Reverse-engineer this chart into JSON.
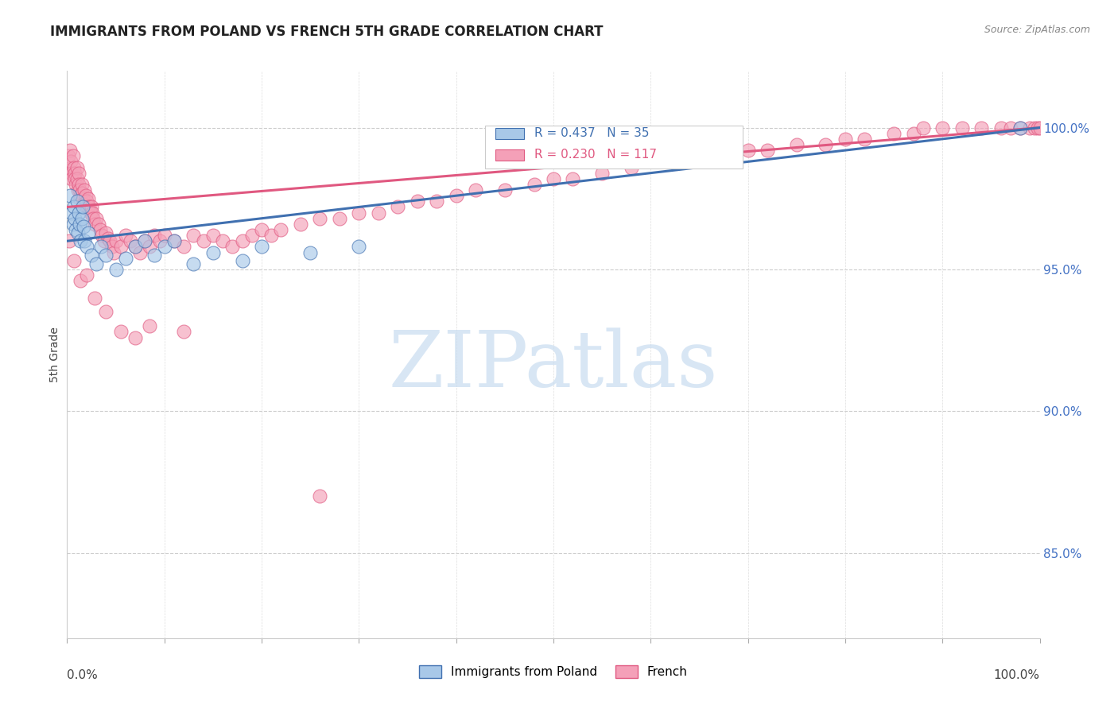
{
  "title": "IMMIGRANTS FROM POLAND VS FRENCH 5TH GRADE CORRELATION CHART",
  "source": "Source: ZipAtlas.com",
  "ylabel": "5th Grade",
  "legend_label1": "Immigrants from Poland",
  "legend_label2": "French",
  "r1": 0.437,
  "n1": 35,
  "r2": 0.23,
  "n2": 117,
  "color_blue": "#a8c8e8",
  "color_pink": "#f4a0b8",
  "color_blue_line": "#4070b0",
  "color_pink_line": "#e05880",
  "color_blue_text": "#4070b0",
  "color_pink_text": "#e05880",
  "ytick_labels": [
    "85.0%",
    "90.0%",
    "95.0%",
    "100.0%"
  ],
  "ytick_values": [
    0.85,
    0.9,
    0.95,
    1.0
  ],
  "xtick_values": [
    0.0,
    0.1,
    0.2,
    0.3,
    0.4,
    0.5,
    0.6,
    0.7,
    0.8,
    0.9,
    1.0
  ],
  "xlim": [
    0.0,
    1.0
  ],
  "ylim": [
    0.82,
    1.02
  ],
  "blue_x": [
    0.003,
    0.005,
    0.006,
    0.007,
    0.008,
    0.009,
    0.01,
    0.011,
    0.012,
    0.013,
    0.014,
    0.015,
    0.016,
    0.017,
    0.018,
    0.02,
    0.022,
    0.025,
    0.03,
    0.035,
    0.04,
    0.05,
    0.06,
    0.07,
    0.08,
    0.09,
    0.1,
    0.11,
    0.13,
    0.15,
    0.18,
    0.2,
    0.25,
    0.3,
    0.98
  ],
  "blue_y": [
    0.976,
    0.97,
    0.966,
    0.972,
    0.968,
    0.964,
    0.974,
    0.963,
    0.97,
    0.966,
    0.96,
    0.968,
    0.972,
    0.965,
    0.96,
    0.958,
    0.963,
    0.955,
    0.952,
    0.958,
    0.955,
    0.95,
    0.954,
    0.958,
    0.96,
    0.955,
    0.958,
    0.96,
    0.952,
    0.956,
    0.953,
    0.958,
    0.956,
    0.958,
    1.0
  ],
  "pink_x": [
    0.001,
    0.002,
    0.003,
    0.004,
    0.005,
    0.005,
    0.006,
    0.007,
    0.008,
    0.008,
    0.009,
    0.01,
    0.01,
    0.011,
    0.012,
    0.012,
    0.013,
    0.013,
    0.014,
    0.015,
    0.015,
    0.016,
    0.017,
    0.018,
    0.019,
    0.02,
    0.021,
    0.022,
    0.023,
    0.024,
    0.025,
    0.026,
    0.027,
    0.028,
    0.03,
    0.032,
    0.034,
    0.036,
    0.038,
    0.04,
    0.042,
    0.044,
    0.046,
    0.048,
    0.05,
    0.055,
    0.06,
    0.065,
    0.07,
    0.075,
    0.08,
    0.085,
    0.09,
    0.095,
    0.1,
    0.11,
    0.12,
    0.13,
    0.14,
    0.15,
    0.16,
    0.17,
    0.18,
    0.19,
    0.2,
    0.21,
    0.22,
    0.24,
    0.26,
    0.28,
    0.3,
    0.32,
    0.34,
    0.36,
    0.38,
    0.4,
    0.42,
    0.45,
    0.48,
    0.5,
    0.52,
    0.55,
    0.58,
    0.6,
    0.62,
    0.65,
    0.68,
    0.7,
    0.72,
    0.75,
    0.78,
    0.8,
    0.82,
    0.85,
    0.87,
    0.88,
    0.9,
    0.92,
    0.94,
    0.96,
    0.97,
    0.98,
    0.99,
    0.995,
    0.998,
    1.0,
    0.002,
    0.007,
    0.014,
    0.02,
    0.028,
    0.04,
    0.055,
    0.07,
    0.085,
    0.12,
    0.26
  ],
  "pink_y": [
    0.99,
    0.985,
    0.992,
    0.988,
    0.984,
    0.982,
    0.99,
    0.986,
    0.984,
    0.982,
    0.98,
    0.986,
    0.982,
    0.978,
    0.984,
    0.98,
    0.978,
    0.975,
    0.976,
    0.98,
    0.977,
    0.975,
    0.973,
    0.978,
    0.976,
    0.974,
    0.972,
    0.975,
    0.972,
    0.97,
    0.972,
    0.97,
    0.968,
    0.966,
    0.968,
    0.966,
    0.964,
    0.962,
    0.96,
    0.963,
    0.961,
    0.96,
    0.958,
    0.956,
    0.96,
    0.958,
    0.962,
    0.96,
    0.958,
    0.956,
    0.96,
    0.958,
    0.962,
    0.96,
    0.962,
    0.96,
    0.958,
    0.962,
    0.96,
    0.962,
    0.96,
    0.958,
    0.96,
    0.962,
    0.964,
    0.962,
    0.964,
    0.966,
    0.968,
    0.968,
    0.97,
    0.97,
    0.972,
    0.974,
    0.974,
    0.976,
    0.978,
    0.978,
    0.98,
    0.982,
    0.982,
    0.984,
    0.986,
    0.988,
    0.988,
    0.99,
    0.99,
    0.992,
    0.992,
    0.994,
    0.994,
    0.996,
    0.996,
    0.998,
    0.998,
    1.0,
    1.0,
    1.0,
    1.0,
    1.0,
    1.0,
    1.0,
    1.0,
    1.0,
    1.0,
    1.0,
    0.96,
    0.953,
    0.946,
    0.948,
    0.94,
    0.935,
    0.928,
    0.926,
    0.93,
    0.928,
    0.87
  ],
  "watermark_text": "ZIPatlas",
  "watermark_fontsize": 72,
  "watermark_color": "#c8dcf0",
  "watermark_alpha": 0.7
}
